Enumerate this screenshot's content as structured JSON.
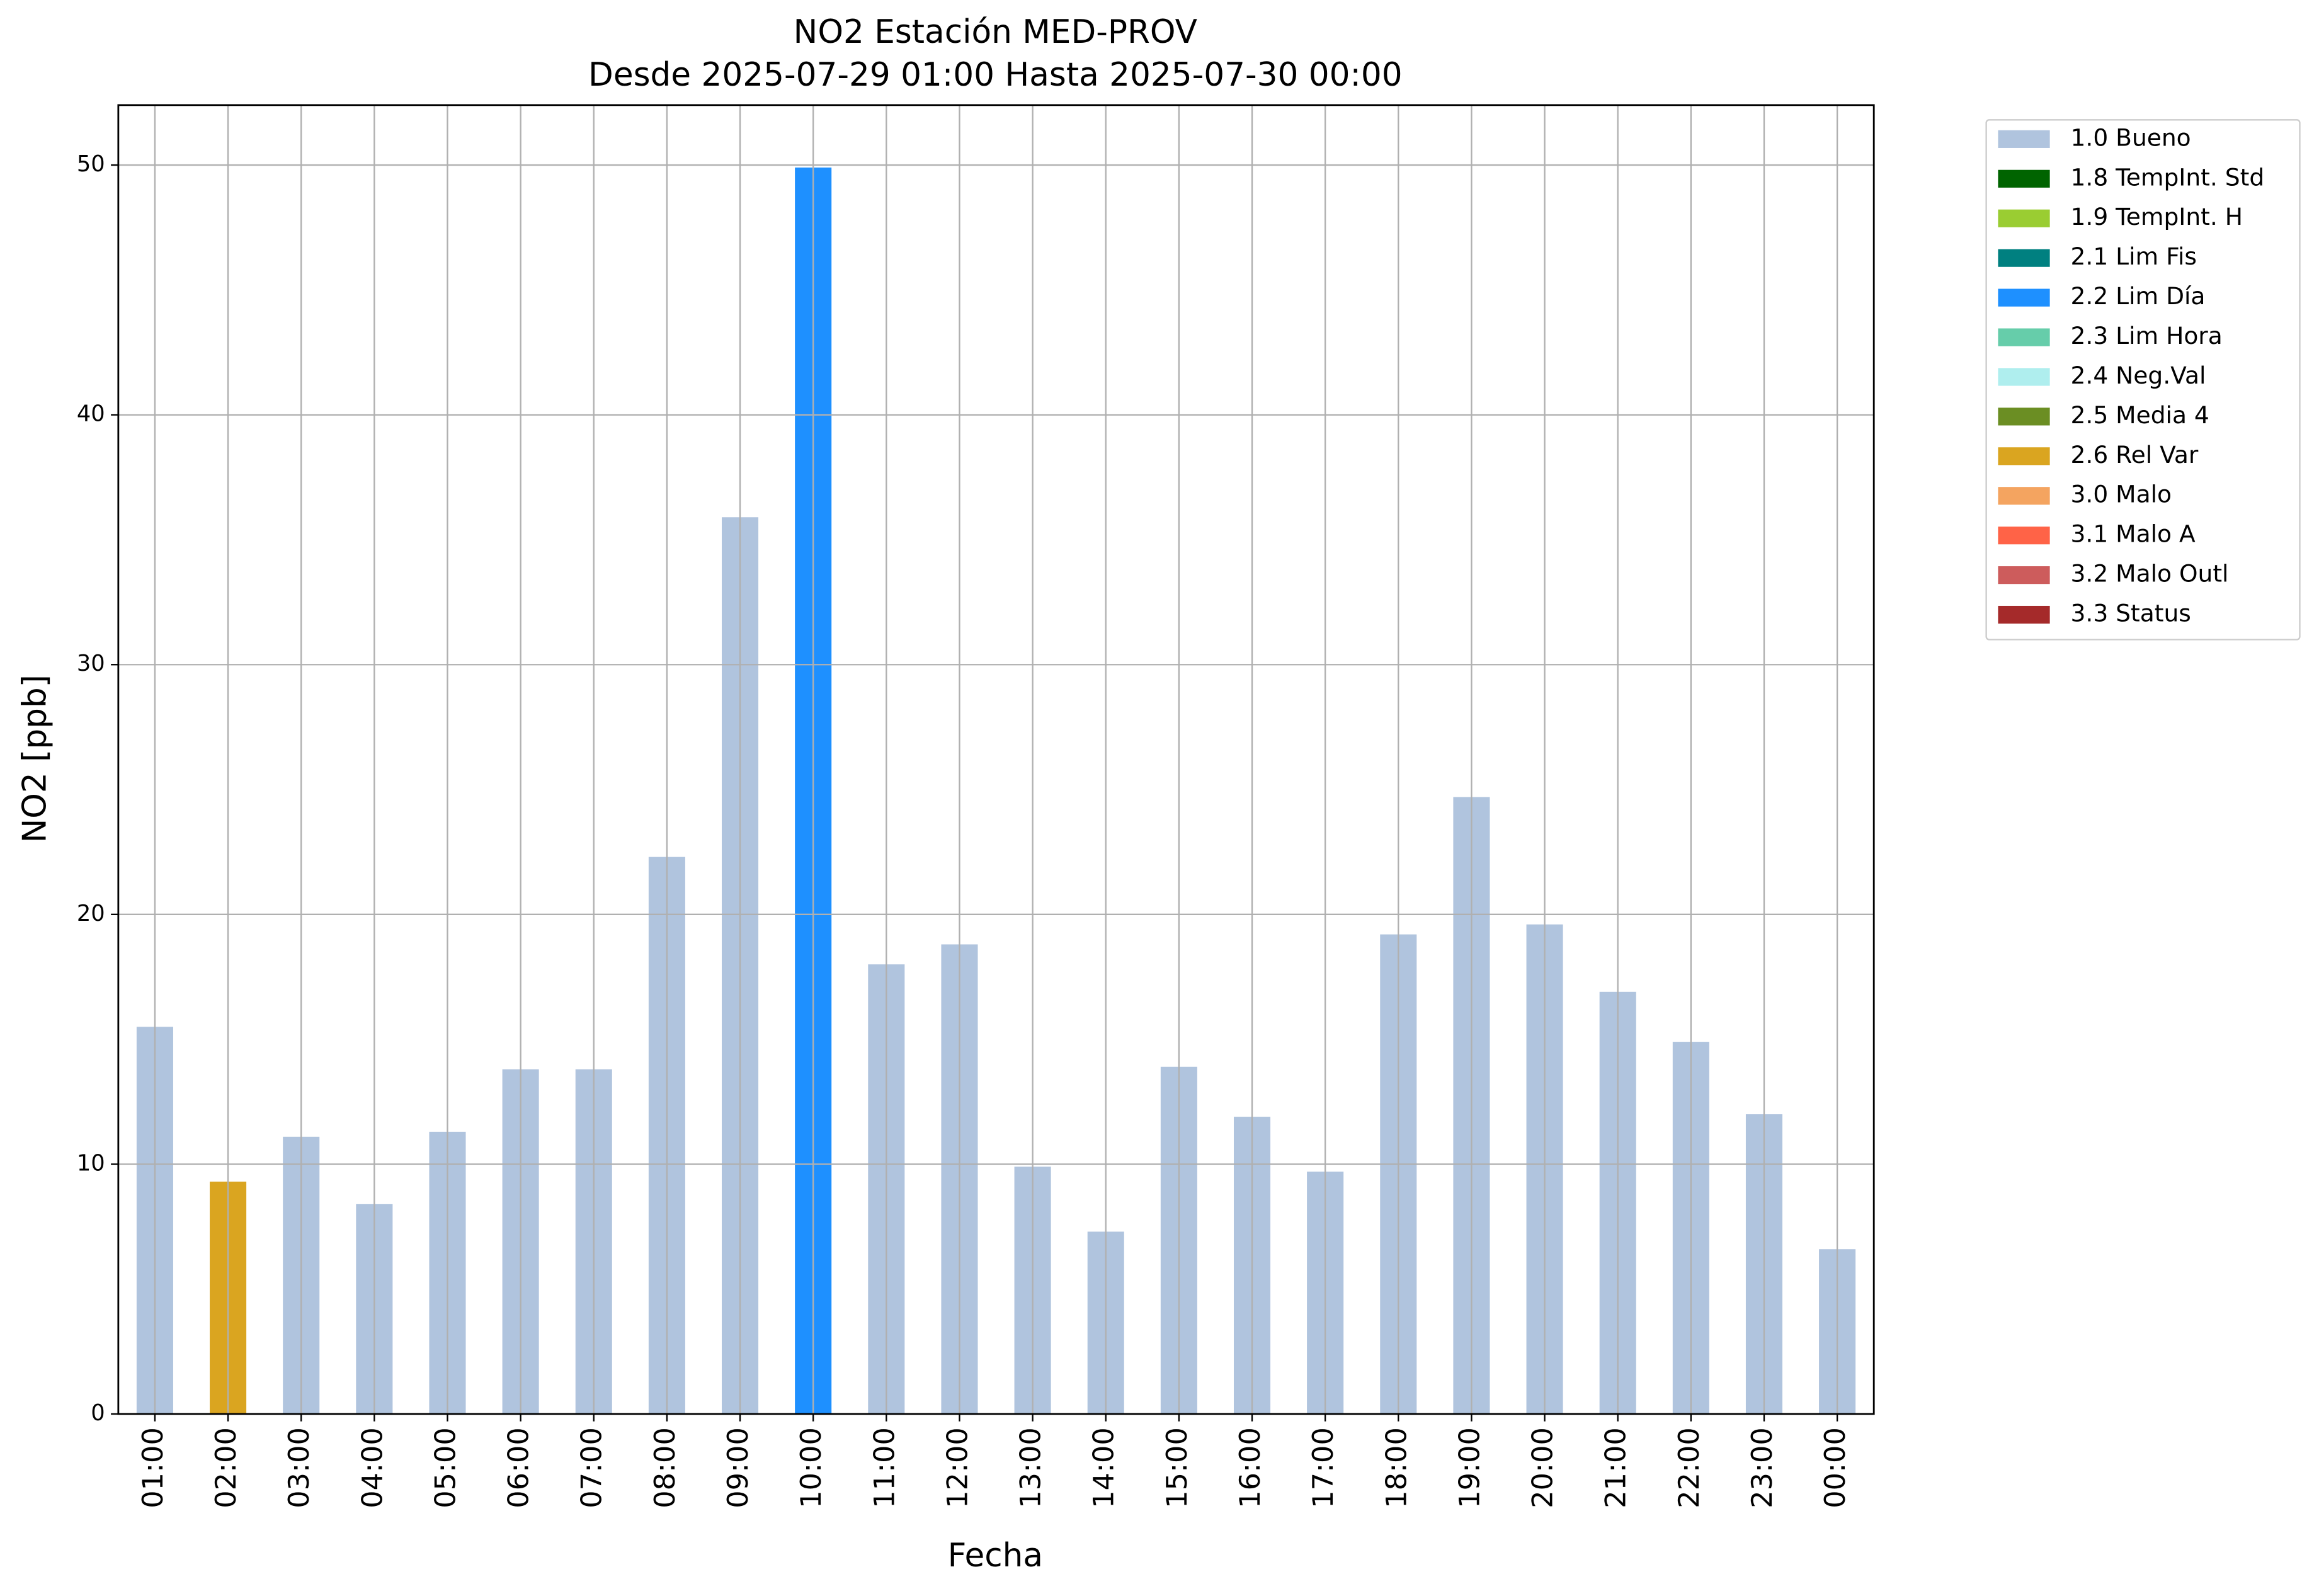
{
  "chart_data": {
    "type": "bar",
    "stacked": true,
    "title": "NO2 Estación MED-PROV",
    "subtitle": "Desde 2025-07-29 01:00 Hasta 2025-07-30 00:00",
    "x_label": "Fecha",
    "y_label": "NO2 [ppb]",
    "categories": [
      "01:00",
      "02:00",
      "03:00",
      "04:00",
      "05:00",
      "06:00",
      "07:00",
      "08:00",
      "09:00",
      "10:00",
      "11:00",
      "12:00",
      "13:00",
      "14:00",
      "15:00",
      "16:00",
      "17:00",
      "18:00",
      "19:00",
      "20:00",
      "21:00",
      "22:00",
      "23:00",
      "00:00"
    ],
    "series": [
      {
        "name": "1.0 Bueno",
        "color": "#b0c4de",
        "values": [
          15.5,
          null,
          11.1,
          8.4,
          11.3,
          13.8,
          13.8,
          22.3,
          35.9,
          null,
          18,
          18.8,
          9.9,
          7.3,
          13.9,
          11.9,
          9.7,
          19.2,
          24.7,
          19.6,
          16.9,
          14.9,
          12,
          6.6
        ]
      },
      {
        "name": "1.8 TempInt. Std",
        "color": "#006400",
        "values": [
          null,
          null,
          null,
          null,
          null,
          null,
          null,
          null,
          null,
          null,
          null,
          null,
          null,
          null,
          null,
          null,
          null,
          null,
          null,
          null,
          null,
          null,
          null,
          null
        ]
      },
      {
        "name": "1.9 TempInt. H",
        "color": "#9acd32",
        "values": [
          null,
          null,
          null,
          null,
          null,
          null,
          null,
          null,
          null,
          null,
          null,
          null,
          null,
          null,
          null,
          null,
          null,
          null,
          null,
          null,
          null,
          null,
          null,
          null
        ]
      },
      {
        "name": "2.1 Lim Fis",
        "color": "#008080",
        "values": [
          null,
          null,
          null,
          null,
          null,
          null,
          null,
          null,
          null,
          null,
          null,
          null,
          null,
          null,
          null,
          null,
          null,
          null,
          null,
          null,
          null,
          null,
          null,
          null
        ]
      },
      {
        "name": "2.2 Lim Día",
        "color": "#1e90ff",
        "values": [
          null,
          null,
          null,
          null,
          null,
          null,
          null,
          null,
          null,
          49.9,
          null,
          null,
          null,
          null,
          null,
          null,
          null,
          null,
          null,
          null,
          null,
          null,
          null,
          null
        ]
      },
      {
        "name": "2.3 Lim Hora",
        "color": "#66cdaa",
        "values": [
          null,
          null,
          null,
          null,
          null,
          null,
          null,
          null,
          null,
          null,
          null,
          null,
          null,
          null,
          null,
          null,
          null,
          null,
          null,
          null,
          null,
          null,
          null,
          null
        ]
      },
      {
        "name": "2.4 Neg.Val",
        "color": "#afeeee",
        "values": [
          null,
          null,
          null,
          null,
          null,
          null,
          null,
          null,
          null,
          null,
          null,
          null,
          null,
          null,
          null,
          null,
          null,
          null,
          null,
          null,
          null,
          null,
          null,
          null
        ]
      },
      {
        "name": "2.5 Media 4",
        "color": "#6b8e23",
        "values": [
          null,
          null,
          null,
          null,
          null,
          null,
          null,
          null,
          null,
          null,
          null,
          null,
          null,
          null,
          null,
          null,
          null,
          null,
          null,
          null,
          null,
          null,
          null,
          null
        ]
      },
      {
        "name": "2.6 Rel Var",
        "color": "#daa520",
        "values": [
          null,
          9.3,
          null,
          null,
          null,
          null,
          null,
          null,
          null,
          null,
          null,
          null,
          null,
          null,
          null,
          null,
          null,
          null,
          null,
          null,
          null,
          null,
          null,
          null
        ]
      },
      {
        "name": "3.0 Malo",
        "color": "#f4a460",
        "values": [
          null,
          null,
          null,
          null,
          null,
          null,
          null,
          null,
          null,
          null,
          null,
          null,
          null,
          null,
          null,
          null,
          null,
          null,
          null,
          null,
          null,
          null,
          null,
          null
        ]
      },
      {
        "name": "3.1 Malo A",
        "color": "#ff6347",
        "values": [
          null,
          null,
          null,
          null,
          null,
          null,
          null,
          null,
          null,
          null,
          null,
          null,
          null,
          null,
          null,
          null,
          null,
          null,
          null,
          null,
          null,
          null,
          null,
          null
        ]
      },
      {
        "name": "3.2 Malo Outl",
        "color": "#cd5c5c",
        "values": [
          null,
          null,
          null,
          null,
          null,
          null,
          null,
          null,
          null,
          null,
          null,
          null,
          null,
          null,
          null,
          null,
          null,
          null,
          null,
          null,
          null,
          null,
          null,
          null
        ]
      },
      {
        "name": "3.3 Status",
        "color": "#a52a2a",
        "values": [
          null,
          null,
          null,
          null,
          null,
          null,
          null,
          null,
          null,
          null,
          null,
          null,
          null,
          null,
          null,
          null,
          null,
          null,
          null,
          null,
          null,
          null,
          null,
          null
        ]
      }
    ],
    "ylim": [
      0,
      52.4
    ],
    "yticks": [
      0,
      10,
      20,
      30,
      40,
      50
    ],
    "grid": true,
    "legend": "outside upper right"
  }
}
